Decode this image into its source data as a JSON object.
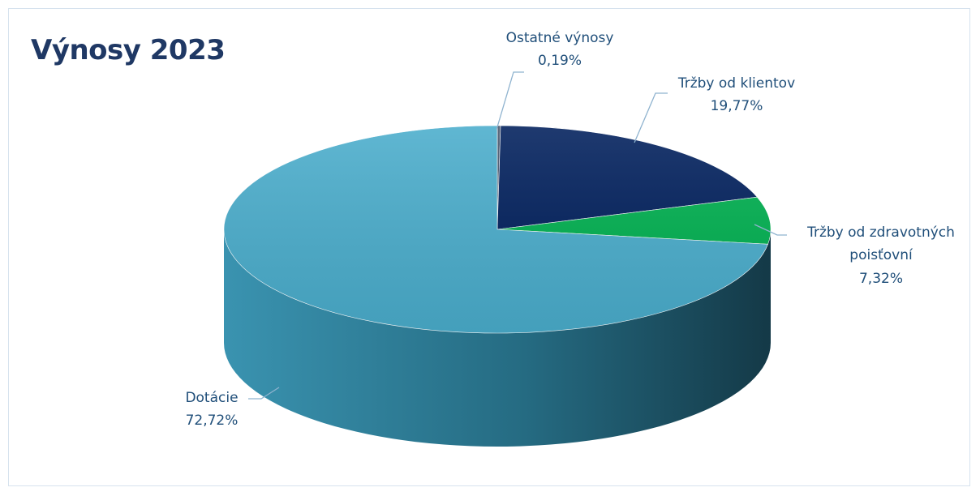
{
  "chart_data": {
    "type": "pie",
    "title": "Výnosy 2023",
    "unit": "%",
    "slices": [
      {
        "label": "Ostatné výnosy",
        "value": 0.19,
        "display": "0,19%",
        "color": "#44546a"
      },
      {
        "label": "Tržby od klientov",
        "value": 19.77,
        "display": "19,77%",
        "color": "#001f5c"
      },
      {
        "label": "Tržby od zdravotných poisťovní",
        "value": 7.32,
        "display": "7,32%",
        "color": "#00b050"
      },
      {
        "label": "Dotácie",
        "value": 72.72,
        "display": "72,72%",
        "color": "#4aadcc"
      }
    ]
  }
}
